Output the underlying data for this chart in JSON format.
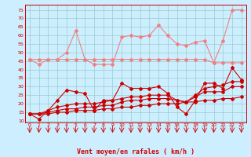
{
  "x": [
    0,
    1,
    2,
    3,
    4,
    5,
    6,
    7,
    8,
    9,
    10,
    11,
    12,
    13,
    14,
    15,
    16,
    17,
    18,
    19,
    20,
    21,
    22,
    23
  ],
  "line1": [
    46,
    43,
    46,
    46,
    50,
    63,
    46,
    43,
    43,
    43,
    59,
    60,
    59,
    60,
    66,
    60,
    55,
    54,
    56,
    57,
    44,
    57,
    75,
    75
  ],
  "line2": [
    46,
    46,
    46,
    46,
    46,
    46,
    46,
    46,
    46,
    46,
    46,
    46,
    46,
    46,
    46,
    46,
    46,
    46,
    46,
    46,
    44,
    44,
    44,
    44
  ],
  "line3": [
    14,
    11,
    16,
    22,
    28,
    27,
    26,
    16,
    22,
    22,
    32,
    29,
    29,
    29,
    30,
    26,
    18,
    14,
    22,
    32,
    32,
    29,
    41,
    34
  ],
  "line4": [
    14,
    14,
    16,
    18,
    19,
    20,
    20,
    20,
    21,
    22,
    23,
    24,
    24,
    25,
    25,
    25,
    22,
    21,
    25,
    29,
    30,
    31,
    33,
    33
  ],
  "line5": [
    14,
    14,
    15,
    16,
    17,
    17,
    18,
    18,
    19,
    19,
    21,
    22,
    22,
    23,
    23,
    23,
    22,
    21,
    24,
    27,
    27,
    27,
    30,
    30
  ],
  "line6": [
    14,
    14,
    14,
    15,
    15,
    16,
    16,
    16,
    17,
    17,
    18,
    18,
    19,
    19,
    20,
    20,
    20,
    21,
    21,
    22,
    22,
    23,
    23,
    24
  ],
  "color_light": "#f08080",
  "color_dark": "#cc0000",
  "bg_color": "#cceeff",
  "grid_color": "#99cccc",
  "xlabel": "Vent moyen/en rafales ( km/h )",
  "ylabel_ticks": [
    10,
    15,
    20,
    25,
    30,
    35,
    40,
    45,
    50,
    55,
    60,
    65,
    70,
    75
  ],
  "xlim": [
    -0.5,
    23.5
  ],
  "ylim": [
    9,
    78
  ]
}
